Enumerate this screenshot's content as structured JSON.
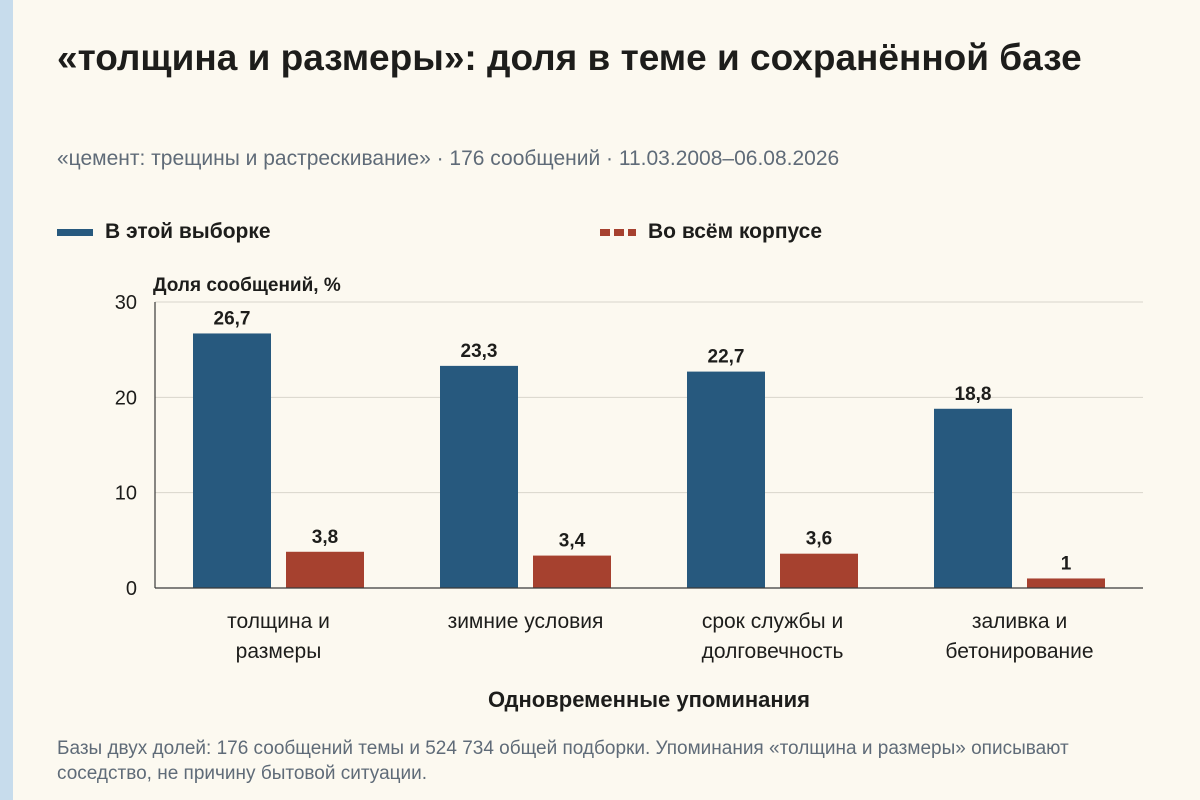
{
  "title": "«толщина и размеры»: доля в теме и сохранённой базе",
  "subtitle": "«цемент: трещины и растрескивание» · 176 сообщений · 11.03.2008–06.08.2026",
  "footnote": "Базы двух долей: 176 сообщений темы и 524 734 общей подборки. Упоминания «толщина и размеры» описывают соседство, не причину бытовой ситуации.",
  "colors": {
    "series_1": "#27597e",
    "series_2": "#a6412f",
    "grid": "#d9d5cc",
    "axis": "#3a3a3a",
    "background": "#fcf9f0"
  },
  "chart_data": {
    "type": "bar",
    "title": "«толщина и размеры»: доля в теме и сохранённой базе",
    "ylabel": "Доля сообщений, %",
    "xlabel": "Одновременные упоминания",
    "ylim": [
      0,
      30
    ],
    "yticks": [
      "0",
      "10",
      "20",
      "30"
    ],
    "grid": true,
    "legend_position": "top",
    "categories": [
      [
        "толщина и",
        "размеры"
      ],
      [
        "зимние условия"
      ],
      [
        "срок службы и",
        "долговечность"
      ],
      [
        "заливка и",
        "бетонирование"
      ]
    ],
    "series": [
      {
        "name": "В этой выборке",
        "values": [
          26.7,
          23.3,
          22.7,
          18.8
        ],
        "labels": [
          "26,7",
          "23,3",
          "22,7",
          "18,8"
        ]
      },
      {
        "name": "Во всём корпусе",
        "values": [
          3.8,
          3.4,
          3.6,
          1.0
        ],
        "labels": [
          "3,8",
          "3,4",
          "3,6",
          "1"
        ]
      }
    ]
  }
}
